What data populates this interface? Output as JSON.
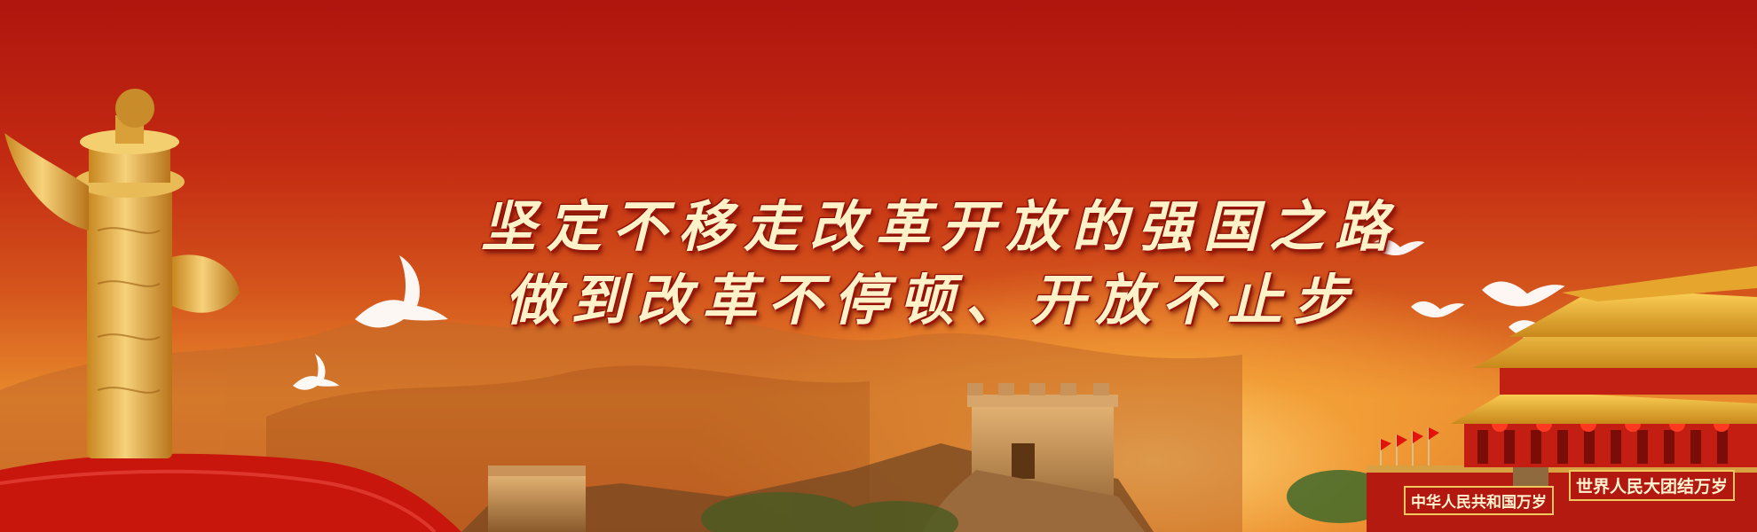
{
  "banner": {
    "slogan_line1": "坚定不移走改革开放的强国之路",
    "slogan_line2": "做到改革不停顿、开放不止步",
    "gate_plaque_left": "中华人民共和国万岁",
    "gate_plaque_right": "世界人民大团结万岁"
  },
  "colors": {
    "sky_top": "#b0150e",
    "sky_glow": "#f7a83c",
    "gold": "#e8b84a",
    "text_fill": "#fff1c8",
    "text_outline": "#8a0b05"
  },
  "scene_elements": [
    "huabiao-column",
    "white-doves",
    "great-wall",
    "tiananmen-gate",
    "red-flags",
    "red-silk-ribbon"
  ]
}
